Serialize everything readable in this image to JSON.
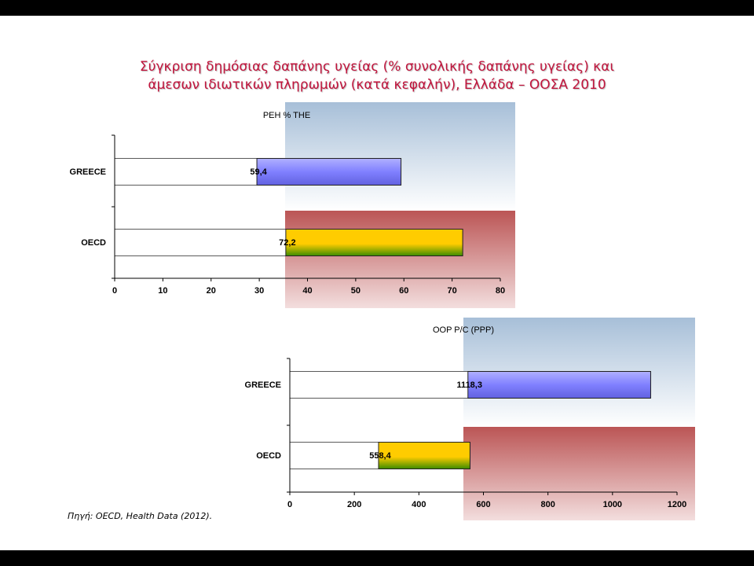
{
  "slide": {
    "title_line1": "Σύγκριση δημόσιας δαπάνης υγείας (% συνολικής δαπάνης υγείας) και",
    "title_line2": "άμεσων ιδιωτικών πληρωμών (κατά κεφαλήν), Ελλάδα – ΟΟΣΑ 2010",
    "source": "Πηγή: OECD, Health Data (2012)."
  },
  "chart_data": [
    {
      "type": "bar",
      "orientation": "horizontal",
      "title": "PEH % THE",
      "categories": [
        "GREECE",
        "OECD"
      ],
      "values": [
        59.4,
        72.2
      ],
      "value_labels": [
        "59,4",
        "72,2"
      ],
      "xlim": [
        0,
        80
      ],
      "ticks": [
        0,
        10,
        20,
        30,
        40,
        50,
        60,
        70,
        80
      ],
      "bar_colors": [
        "#8080ff",
        "#ffcc00"
      ],
      "background_panels": [
        "#a7bfd8",
        "#bb5555"
      ]
    },
    {
      "type": "bar",
      "orientation": "horizontal",
      "title": "OOP P/C (PPP)",
      "categories": [
        "GREECE",
        "OECD"
      ],
      "values": [
        1118.3,
        558.4
      ],
      "value_labels": [
        "1118,3",
        "558,4"
      ],
      "xlim": [
        0,
        1200
      ],
      "ticks": [
        0,
        200,
        400,
        600,
        800,
        1000,
        1200
      ],
      "bar_colors": [
        "#8080ff",
        "#ffcc00"
      ],
      "background_panels": [
        "#a7bfd8",
        "#bb5555"
      ]
    }
  ]
}
